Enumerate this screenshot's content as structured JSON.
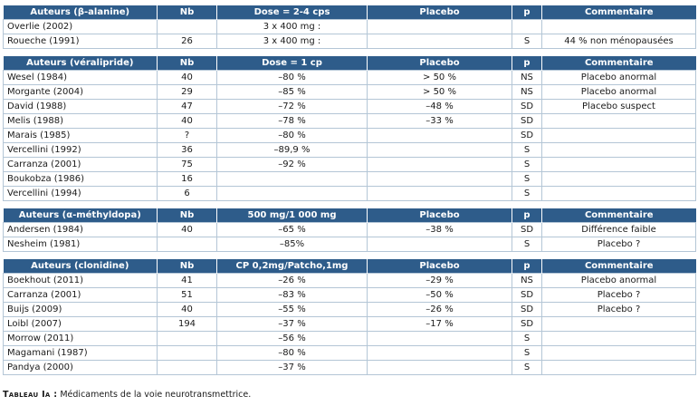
{
  "sections": [
    {
      "headers": [
        "Auteurs (β-alanine)",
        "Nb",
        "Dose = 2-4 cps",
        "Placebo",
        "p",
        "Commentaire"
      ],
      "rows": [
        [
          "Overlie (2002)",
          "",
          "3 x 400 mg :",
          "",
          "",
          ""
        ],
        [
          "Roueche (1991)",
          "26",
          "3 x 400 mg :",
          "",
          "S",
          "44 % non ménopausées"
        ]
      ]
    },
    {
      "headers": [
        "Auteurs (véralipride)",
        "Nb",
        "Dose = 1 cp",
        "Placebo",
        "p",
        "Commentaire"
      ],
      "rows": [
        [
          "Wesel (1984)",
          "40",
          "–80 %",
          "> 50 %",
          "NS",
          "Placebo anormal"
        ],
        [
          "Morgante (2004)",
          "29",
          "–85 %",
          "> 50 %",
          "NS",
          "Placebo anormal"
        ],
        [
          "David (1988)",
          "47",
          "–72 %",
          "–48 %",
          "SD",
          "Placebo suspect"
        ],
        [
          "Melis (1988)",
          "40",
          "–78 %",
          "–33 %",
          "SD",
          ""
        ],
        [
          "Marais (1985)",
          "?",
          "–80 %",
          "",
          "SD",
          ""
        ],
        [
          "Vercellini (1992)",
          "36",
          "–89,9 %",
          "",
          "S",
          ""
        ],
        [
          "Carranza (2001)",
          "75",
          "–92 %",
          "",
          "S",
          ""
        ],
        [
          "Boukobza (1986)",
          "16",
          "",
          "",
          "S",
          ""
        ],
        [
          "Vercellini (1994)",
          "6",
          "",
          "",
          "S",
          ""
        ]
      ]
    },
    {
      "headers": [
        "Auteurs (α-méthyldopa)",
        "Nb",
        "500 mg/1 000 mg",
        "Placebo",
        "p",
        "Commentaire"
      ],
      "rows": [
        [
          "Andersen (1984)",
          "40",
          "–65 %",
          "–38 %",
          "SD",
          "Différence faible"
        ],
        [
          "Nesheim (1981)",
          "",
          "–85%",
          "",
          "S",
          "Placebo ?"
        ]
      ]
    },
    {
      "headers": [
        "Auteurs (clonidine)",
        "Nb",
        "CP 0,2mg/Patcho,1mg",
        "Placebo",
        "p",
        "Commentaire"
      ],
      "rows": [
        [
          "Boekhout (2011)",
          "41",
          "–26 %",
          "–29 %",
          "NS",
          "Placebo anormal"
        ],
        [
          "Carranza (2001)",
          "51",
          "–83 %",
          "–50 %",
          "SD",
          "Placebo ?"
        ],
        [
          "Buijs (2009)",
          "40",
          "–55 %",
          "–26 %",
          "SD",
          "Placebo ?"
        ],
        [
          "Loibl (2007)",
          "194",
          "–37 %",
          "–17 %",
          "SD",
          ""
        ],
        [
          "Morrow (2011)",
          "",
          "–56 %",
          "",
          "S",
          ""
        ],
        [
          "Magamani (1987)",
          "",
          "–80 %",
          "",
          "S",
          ""
        ],
        [
          "Pandya (2000)",
          "",
          "–37 %",
          "",
          "S",
          ""
        ]
      ]
    }
  ],
  "caption": {
    "label": "Tableau Ia :",
    "text": "Médicaments de la voie neurotransmettrice."
  }
}
